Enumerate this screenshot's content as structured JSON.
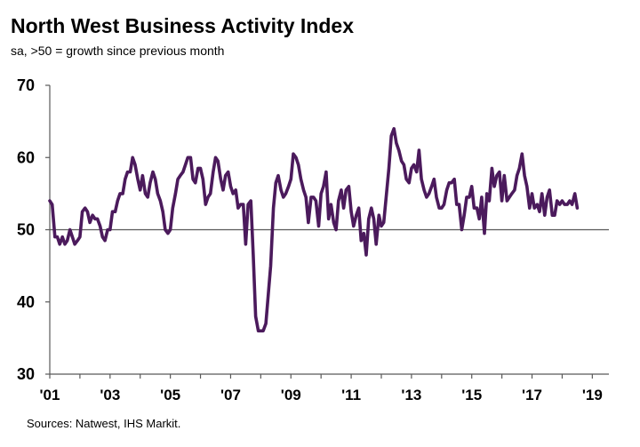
{
  "title": "North West Business Activity Index",
  "subtitle": "sa, >50 = growth  since previous  month",
  "source": "Sources: Natwest, IHS Markit.",
  "colors": {
    "line": "#4B1A5C",
    "axis": "#595959"
  },
  "chart_data": {
    "type": "line",
    "title": "North West Business Activity Index",
    "subtitle": "sa, >50 = growth  since previous  month",
    "ylim": [
      30,
      70
    ],
    "yticks": [
      30,
      40,
      50,
      60,
      70
    ],
    "xlim": [
      2001.0,
      2019.55
    ],
    "xticks": [
      {
        "x": 2001,
        "label": "'01"
      },
      {
        "x": 2003,
        "label": "'03"
      },
      {
        "x": 2005,
        "label": "'05"
      },
      {
        "x": 2007,
        "label": "'07"
      },
      {
        "x": 2009,
        "label": "'09"
      },
      {
        "x": 2011,
        "label": "'11"
      },
      {
        "x": 2013,
        "label": "'13"
      },
      {
        "x": 2015,
        "label": "'15"
      },
      {
        "x": 2017,
        "label": "'17"
      },
      {
        "x": 2019,
        "label": "'19"
      }
    ],
    "reference_line": 50,
    "grid": false,
    "series": [
      {
        "points": [
          [
            2001.0,
            54.0
          ],
          [
            2001.08,
            53.5
          ],
          [
            2001.17,
            49.0
          ],
          [
            2001.25,
            49.0
          ],
          [
            2001.33,
            48.0
          ],
          [
            2001.42,
            49.0
          ],
          [
            2001.5,
            48.0
          ],
          [
            2001.58,
            48.5
          ],
          [
            2001.67,
            50.0
          ],
          [
            2001.75,
            49.0
          ],
          [
            2001.83,
            48.0
          ],
          [
            2001.92,
            48.5
          ],
          [
            2002.0,
            49.0
          ],
          [
            2002.08,
            52.5
          ],
          [
            2002.17,
            53.0
          ],
          [
            2002.25,
            52.5
          ],
          [
            2002.33,
            51.0
          ],
          [
            2002.42,
            52.0
          ],
          [
            2002.5,
            51.5
          ],
          [
            2002.58,
            51.5
          ],
          [
            2002.67,
            50.5
          ],
          [
            2002.75,
            49.0
          ],
          [
            2002.83,
            48.5
          ],
          [
            2002.92,
            50.0
          ],
          [
            2003.0,
            50.0
          ],
          [
            2003.08,
            52.5
          ],
          [
            2003.17,
            52.5
          ],
          [
            2003.25,
            54.0
          ],
          [
            2003.33,
            55.0
          ],
          [
            2003.42,
            55.0
          ],
          [
            2003.5,
            57.0
          ],
          [
            2003.58,
            58.0
          ],
          [
            2003.67,
            58.0
          ],
          [
            2003.75,
            60.0
          ],
          [
            2003.83,
            59.0
          ],
          [
            2003.92,
            57.0
          ],
          [
            2004.0,
            55.5
          ],
          [
            2004.08,
            57.5
          ],
          [
            2004.17,
            55.0
          ],
          [
            2004.25,
            54.5
          ],
          [
            2004.33,
            56.5
          ],
          [
            2004.42,
            58.0
          ],
          [
            2004.5,
            57.0
          ],
          [
            2004.58,
            55.0
          ],
          [
            2004.67,
            54.0
          ],
          [
            2004.75,
            52.5
          ],
          [
            2004.83,
            50.0
          ],
          [
            2004.92,
            49.5
          ],
          [
            2005.0,
            50.0
          ],
          [
            2005.08,
            53.0
          ],
          [
            2005.17,
            55.0
          ],
          [
            2005.25,
            57.0
          ],
          [
            2005.33,
            57.5
          ],
          [
            2005.42,
            58.0
          ],
          [
            2005.5,
            59.0
          ],
          [
            2005.58,
            60.0
          ],
          [
            2005.67,
            60.0
          ],
          [
            2005.75,
            57.0
          ],
          [
            2005.83,
            56.5
          ],
          [
            2005.92,
            58.5
          ],
          [
            2006.0,
            58.5
          ],
          [
            2006.08,
            57.0
          ],
          [
            2006.17,
            53.5
          ],
          [
            2006.25,
            54.5
          ],
          [
            2006.33,
            55.0
          ],
          [
            2006.42,
            58.0
          ],
          [
            2006.5,
            60.0
          ],
          [
            2006.58,
            59.5
          ],
          [
            2006.67,
            57.0
          ],
          [
            2006.75,
            55.5
          ],
          [
            2006.83,
            57.5
          ],
          [
            2006.92,
            58.0
          ],
          [
            2007.0,
            56.0
          ],
          [
            2007.08,
            55.0
          ],
          [
            2007.17,
            55.5
          ],
          [
            2007.25,
            53.0
          ],
          [
            2007.33,
            53.5
          ],
          [
            2007.42,
            53.5
          ],
          [
            2007.5,
            48.0
          ],
          [
            2007.58,
            53.5
          ],
          [
            2007.67,
            54.0
          ],
          [
            2007.75,
            46.5
          ],
          [
            2007.83,
            38.0
          ],
          [
            2007.92,
            36.0
          ],
          [
            2008.0,
            36.0
          ],
          [
            2008.08,
            36.0
          ],
          [
            2008.17,
            37.0
          ],
          [
            2008.25,
            41.0
          ],
          [
            2008.33,
            45.0
          ],
          [
            2008.42,
            53.0
          ],
          [
            2008.5,
            56.5
          ],
          [
            2008.58,
            57.5
          ],
          [
            2008.67,
            55.5
          ],
          [
            2008.75,
            54.5
          ],
          [
            2008.83,
            55.0
          ],
          [
            2008.92,
            56.0
          ],
          [
            2009.0,
            57.0
          ],
          [
            2009.08,
            60.5
          ],
          [
            2009.17,
            60.0
          ],
          [
            2009.25,
            59.0
          ],
          [
            2009.33,
            57.0
          ],
          [
            2009.42,
            55.5
          ],
          [
            2009.5,
            54.5
          ],
          [
            2009.58,
            51.0
          ],
          [
            2009.67,
            54.5
          ],
          [
            2009.75,
            54.5
          ],
          [
            2009.83,
            54.0
          ],
          [
            2009.92,
            50.5
          ],
          [
            2010.0,
            55.0
          ],
          [
            2010.08,
            56.0
          ],
          [
            2010.17,
            58.0
          ],
          [
            2010.25,
            51.5
          ],
          [
            2010.33,
            53.5
          ],
          [
            2010.42,
            51.0
          ],
          [
            2010.5,
            50.0
          ],
          [
            2010.58,
            54.0
          ],
          [
            2010.67,
            55.5
          ],
          [
            2010.75,
            53.0
          ],
          [
            2010.83,
            55.5
          ],
          [
            2010.92,
            56.0
          ],
          [
            2011.0,
            52.5
          ],
          [
            2011.08,
            50.5
          ],
          [
            2011.17,
            52.0
          ],
          [
            2011.25,
            53.0
          ],
          [
            2011.33,
            48.5
          ],
          [
            2011.42,
            49.5
          ],
          [
            2011.5,
            46.5
          ],
          [
            2011.58,
            51.5
          ],
          [
            2011.67,
            53.0
          ],
          [
            2011.75,
            51.5
          ],
          [
            2011.83,
            48.0
          ],
          [
            2011.92,
            52.0
          ],
          [
            2012.0,
            50.5
          ],
          [
            2012.08,
            51.0
          ],
          [
            2012.17,
            55.0
          ],
          [
            2012.25,
            58.5
          ],
          [
            2012.33,
            63.0
          ],
          [
            2012.42,
            64.0
          ],
          [
            2012.5,
            62.0
          ],
          [
            2012.58,
            61.0
          ],
          [
            2012.67,
            59.5
          ],
          [
            2012.75,
            59.0
          ],
          [
            2012.83,
            57.0
          ],
          [
            2012.92,
            56.5
          ],
          [
            2013.0,
            58.5
          ],
          [
            2013.08,
            59.0
          ],
          [
            2013.17,
            58.0
          ],
          [
            2013.25,
            61.0
          ],
          [
            2013.33,
            57.0
          ],
          [
            2013.42,
            55.5
          ],
          [
            2013.5,
            54.5
          ],
          [
            2013.58,
            55.0
          ],
          [
            2013.67,
            56.0
          ],
          [
            2013.75,
            57.0
          ],
          [
            2013.83,
            54.5
          ],
          [
            2013.92,
            53.0
          ],
          [
            2014.0,
            53.0
          ],
          [
            2014.08,
            53.5
          ],
          [
            2014.17,
            55.5
          ],
          [
            2014.25,
            56.5
          ],
          [
            2014.33,
            56.5
          ],
          [
            2014.42,
            57.0
          ],
          [
            2014.5,
            53.5
          ],
          [
            2014.58,
            53.5
          ],
          [
            2014.67,
            50.0
          ],
          [
            2014.75,
            52.0
          ],
          [
            2014.83,
            54.5
          ],
          [
            2014.92,
            54.5
          ],
          [
            2015.0,
            56.0
          ],
          [
            2015.08,
            53.0
          ],
          [
            2015.17,
            53.0
          ],
          [
            2015.25,
            51.5
          ],
          [
            2015.33,
            54.5
          ],
          [
            2015.42,
            49.5
          ],
          [
            2015.5,
            55.0
          ],
          [
            2015.58,
            54.0
          ],
          [
            2015.67,
            58.5
          ],
          [
            2015.75,
            56.0
          ],
          [
            2015.83,
            57.5
          ],
          [
            2015.92,
            58.0
          ],
          [
            2016.0,
            54.0
          ],
          [
            2016.08,
            57.5
          ],
          [
            2016.17,
            54.0
          ],
          [
            2016.25,
            54.5
          ],
          [
            2016.33,
            55.0
          ],
          [
            2016.42,
            55.5
          ],
          [
            2016.5,
            57.5
          ],
          [
            2016.58,
            58.5
          ],
          [
            2016.67,
            60.5
          ],
          [
            2016.75,
            57.5
          ],
          [
            2016.83,
            56.0
          ],
          [
            2016.92,
            53.0
          ],
          [
            2017.0,
            55.0
          ],
          [
            2017.08,
            53.0
          ],
          [
            2017.17,
            53.5
          ],
          [
            2017.25,
            52.5
          ],
          [
            2017.33,
            55.0
          ],
          [
            2017.42,
            52.0
          ],
          [
            2017.5,
            54.5
          ],
          [
            2017.58,
            55.5
          ],
          [
            2017.67,
            52.0
          ],
          [
            2017.75,
            52.0
          ],
          [
            2017.83,
            54.0
          ],
          [
            2017.92,
            53.5
          ],
          [
            2018.0,
            54.0
          ],
          [
            2018.08,
            53.5
          ],
          [
            2018.17,
            53.5
          ],
          [
            2018.25,
            54.0
          ],
          [
            2018.33,
            53.5
          ],
          [
            2018.42,
            55.0
          ],
          [
            2018.5,
            53.0
          ]
        ]
      }
    ]
  }
}
